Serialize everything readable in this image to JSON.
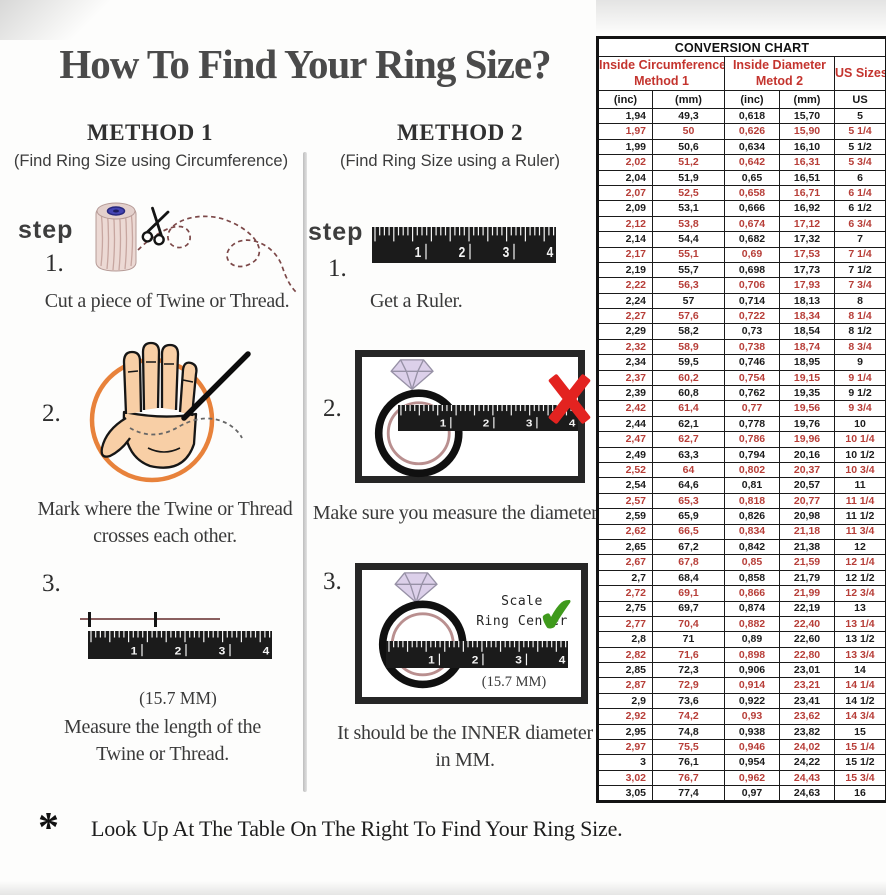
{
  "page": {
    "title": "How To Find Your Ring Size?",
    "footnote_symbol": "*",
    "footnote": "Look Up At The Table On The Right To Find Your Ring Size."
  },
  "ruler": {
    "numbers": [
      "1",
      "2",
      "3",
      "4"
    ]
  },
  "method1": {
    "heading": "METHOD 1",
    "subheading": "(Find Ring Size using Circumference)",
    "step_label": "step",
    "step1": {
      "number": "1.",
      "caption": "Cut a piece of  Twine or Thread."
    },
    "step2": {
      "number": "2.",
      "caption_line1": "Mark where the Twine or Thread",
      "caption_line2": "crosses each other."
    },
    "step3": {
      "number": "3.",
      "measurement": "(15.7 MM)",
      "caption_line1": "Measure the length of the",
      "caption_line2": "Twine or Thread."
    }
  },
  "method2": {
    "heading": "METHOD 2",
    "subheading": "(Find Ring Size using a Ruler)",
    "step_label": "step",
    "step1": {
      "number": "1.",
      "caption": "Get a Ruler."
    },
    "step2": {
      "number": "2.",
      "caption": "Make sure you measure the diameter."
    },
    "step3": {
      "number": "3.",
      "annotation_line1": "Scale",
      "annotation_line2": "Ring Center",
      "check_glyph": "✔",
      "measurement": "(15.7 MM)",
      "caption_line1": "It should be the INNER diameter",
      "caption_line2": "in MM."
    }
  },
  "colors": {
    "table_red": "#b73e38",
    "header_red": "#c4342e",
    "check_green": "#3f9a1c",
    "x_red": "#e32320",
    "circle_orange": "#e8823b"
  },
  "conversion_chart": {
    "title": "CONVERSION CHART",
    "col_groups": [
      {
        "line1": "Inside Circumference",
        "line2": "Method 1"
      },
      {
        "line1": "Inside Diameter",
        "line2": "Metod 2"
      },
      {
        "label": "US Sizes"
      }
    ],
    "unit_headers": [
      "(inc)",
      "(mm)",
      "(inc)",
      "(mm)",
      "US"
    ],
    "rows": [
      [
        "1,94",
        "49,3",
        "0,618",
        "15,70",
        "5"
      ],
      [
        "1,97",
        "50",
        "0,626",
        "15,90",
        "5 1/4"
      ],
      [
        "1,99",
        "50,6",
        "0,634",
        "16,10",
        "5 1/2"
      ],
      [
        "2,02",
        "51,2",
        "0,642",
        "16,31",
        "5 3/4"
      ],
      [
        "2,04",
        "51,9",
        "0,65",
        "16,51",
        "6"
      ],
      [
        "2,07",
        "52,5",
        "0,658",
        "16,71",
        "6 1/4"
      ],
      [
        "2,09",
        "53,1",
        "0,666",
        "16,92",
        "6 1/2"
      ],
      [
        "2,12",
        "53,8",
        "0,674",
        "17,12",
        "6 3/4"
      ],
      [
        "2,14",
        "54,4",
        "0,682",
        "17,32",
        "7"
      ],
      [
        "2,17",
        "55,1",
        "0,69",
        "17,53",
        "7 1/4"
      ],
      [
        "2,19",
        "55,7",
        "0,698",
        "17,73",
        "7 1/2"
      ],
      [
        "2,22",
        "56,3",
        "0,706",
        "17,93",
        "7 3/4"
      ],
      [
        "2,24",
        "57",
        "0,714",
        "18,13",
        "8"
      ],
      [
        "2,27",
        "57,6",
        "0,722",
        "18,34",
        "8 1/4"
      ],
      [
        "2,29",
        "58,2",
        "0,73",
        "18,54",
        "8 1/2"
      ],
      [
        "2,32",
        "58,9",
        "0,738",
        "18,74",
        "8 3/4"
      ],
      [
        "2,34",
        "59,5",
        "0,746",
        "18,95",
        "9"
      ],
      [
        "2,37",
        "60,2",
        "0,754",
        "19,15",
        "9 1/4"
      ],
      [
        "2,39",
        "60,8",
        "0,762",
        "19,35",
        "9 1/2"
      ],
      [
        "2,42",
        "61,4",
        "0,77",
        "19,56",
        "9 3/4"
      ],
      [
        "2,44",
        "62,1",
        "0,778",
        "19,76",
        "10"
      ],
      [
        "2,47",
        "62,7",
        "0,786",
        "19,96",
        "10 1/4"
      ],
      [
        "2,49",
        "63,3",
        "0,794",
        "20,16",
        "10 1/2"
      ],
      [
        "2,52",
        "64",
        "0,802",
        "20,37",
        "10 3/4"
      ],
      [
        "2,54",
        "64,6",
        "0,81",
        "20,57",
        "11"
      ],
      [
        "2,57",
        "65,3",
        "0,818",
        "20,77",
        "11 1/4"
      ],
      [
        "2,59",
        "65,9",
        "0,826",
        "20,98",
        "11 1/2"
      ],
      [
        "2,62",
        "66,5",
        "0,834",
        "21,18",
        "11 3/4"
      ],
      [
        "2,65",
        "67,2",
        "0,842",
        "21,38",
        "12"
      ],
      [
        "2,67",
        "67,8",
        "0,85",
        "21,59",
        "12 1/4"
      ],
      [
        "2,7",
        "68,4",
        "0,858",
        "21,79",
        "12 1/2"
      ],
      [
        "2,72",
        "69,1",
        "0,866",
        "21,99",
        "12 3/4"
      ],
      [
        "2,75",
        "69,7",
        "0,874",
        "22,19",
        "13"
      ],
      [
        "2,77",
        "70,4",
        "0,882",
        "22,40",
        "13 1/4"
      ],
      [
        "2,8",
        "71",
        "0,89",
        "22,60",
        "13 1/2"
      ],
      [
        "2,82",
        "71,6",
        "0,898",
        "22,80",
        "13 3/4"
      ],
      [
        "2,85",
        "72,3",
        "0,906",
        "23,01",
        "14"
      ],
      [
        "2,87",
        "72,9",
        "0,914",
        "23,21",
        "14 1/4"
      ],
      [
        "2,9",
        "73,6",
        "0,922",
        "23,41",
        "14 1/2"
      ],
      [
        "2,92",
        "74,2",
        "0,93",
        "23,62",
        "14 3/4"
      ],
      [
        "2,95",
        "74,8",
        "0,938",
        "23,82",
        "15"
      ],
      [
        "2,97",
        "75,5",
        "0,946",
        "24,02",
        "15 1/4"
      ],
      [
        "3",
        "76,1",
        "0,954",
        "24,22",
        "15 1/2"
      ],
      [
        "3,02",
        "76,7",
        "0,962",
        "24,43",
        "15 3/4"
      ],
      [
        "3,05",
        "77,4",
        "0,97",
        "24,63",
        "16"
      ]
    ]
  }
}
